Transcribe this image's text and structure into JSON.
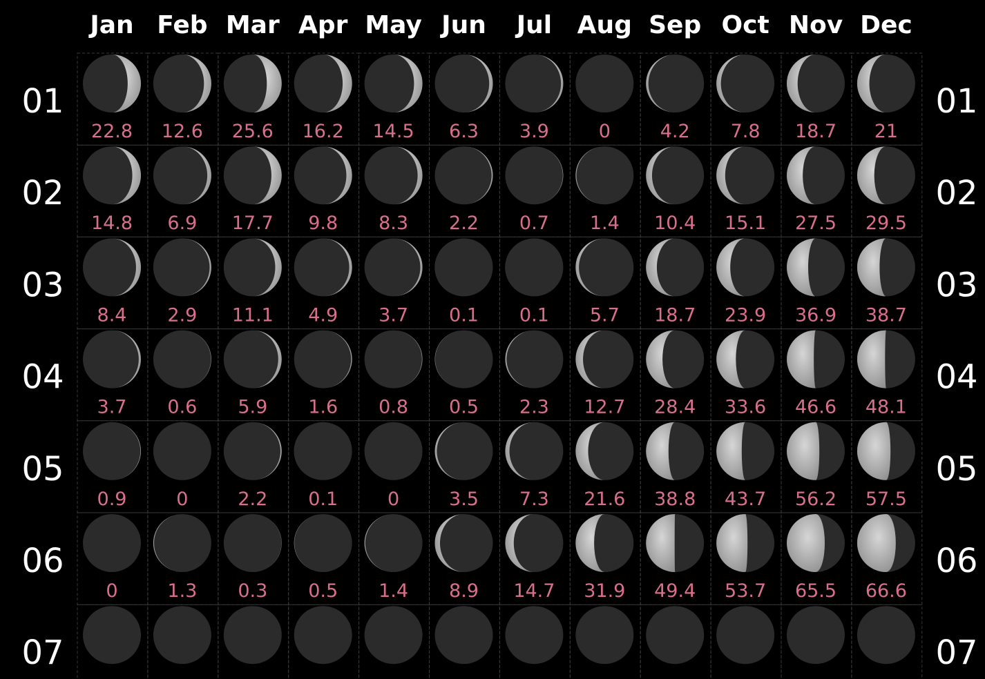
{
  "months": [
    "Jan",
    "Feb",
    "Mar",
    "Apr",
    "May",
    "Jun",
    "Jul",
    "Aug",
    "Sep",
    "Oct",
    "Nov",
    "Dec"
  ],
  "rows": [
    {
      "day": "01",
      "values": [
        22.8,
        12.6,
        25.6,
        16.2,
        14.5,
        6.3,
        3.9,
        0,
        4.2,
        7.8,
        18.7,
        21
      ]
    },
    {
      "day": "02",
      "values": [
        14.8,
        6.9,
        17.7,
        9.8,
        8.3,
        2.2,
        0.7,
        1.4,
        10.4,
        15.1,
        27.5,
        29.5
      ]
    },
    {
      "day": "03",
      "values": [
        8.4,
        2.9,
        11.1,
        4.9,
        3.7,
        0.1,
        0.1,
        5.7,
        18.7,
        23.9,
        36.9,
        38.7
      ]
    },
    {
      "day": "04",
      "values": [
        3.7,
        0.6,
        5.9,
        1.6,
        0.8,
        0.5,
        2.3,
        12.7,
        28.4,
        33.6,
        46.6,
        48.1
      ]
    },
    {
      "day": "05",
      "values": [
        0.9,
        0,
        2.2,
        0.1,
        0,
        3.5,
        7.3,
        21.6,
        38.8,
        43.7,
        56.2,
        57.5
      ]
    },
    {
      "day": "06",
      "values": [
        0,
        1.3,
        0.3,
        0.5,
        1.4,
        8.9,
        14.7,
        31.9,
        49.4,
        53.7,
        65.5,
        66.6
      ]
    },
    {
      "day": "07"
    }
  ]
}
